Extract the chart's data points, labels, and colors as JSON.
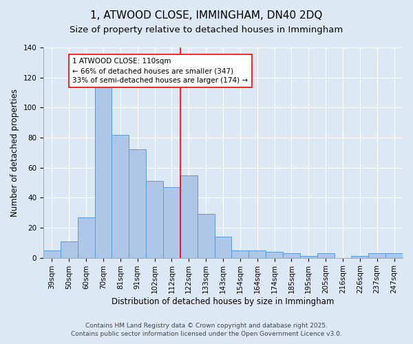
{
  "title_line1": "1, ATWOOD CLOSE, IMMINGHAM, DN40 2DQ",
  "title_line2": "Size of property relative to detached houses in Immingham",
  "categories": [
    "39sqm",
    "50sqm",
    "60sqm",
    "70sqm",
    "81sqm",
    "91sqm",
    "102sqm",
    "112sqm",
    "122sqm",
    "133sqm",
    "143sqm",
    "154sqm",
    "164sqm",
    "174sqm",
    "185sqm",
    "195sqm",
    "205sqm",
    "216sqm",
    "226sqm",
    "237sqm",
    "247sqm"
  ],
  "values": [
    5,
    11,
    27,
    114,
    82,
    72,
    51,
    47,
    55,
    29,
    14,
    5,
    5,
    4,
    3,
    1,
    3,
    0,
    1,
    3,
    3
  ],
  "bar_color": "#aec6e8",
  "bar_edge_color": "#5b9bd5",
  "background_color": "#dce9f5",
  "ylabel": "Number of detached properties",
  "xlabel": "Distribution of detached houses by size in Immingham",
  "ylim": [
    0,
    140
  ],
  "yticks": [
    0,
    20,
    40,
    60,
    80,
    100,
    120,
    140
  ],
  "annotation_line1": "1 ATWOOD CLOSE: 110sqm",
  "annotation_line2": "← 66% of detached houses are smaller (347)",
  "annotation_line3": "33% of semi-detached houses are larger (174) →",
  "footnote_line1": "Contains HM Land Registry data © Crown copyright and database right 2025.",
  "footnote_line2": "Contains public sector information licensed under the Open Government Licence v3.0.",
  "grid_color": "#ffffff",
  "title_fontsize": 11,
  "subtitle_fontsize": 9.5,
  "axis_label_fontsize": 8.5,
  "tick_fontsize": 7.5,
  "annotation_fontsize": 7.5,
  "footnote_fontsize": 6.5,
  "redline_index": 7.5
}
